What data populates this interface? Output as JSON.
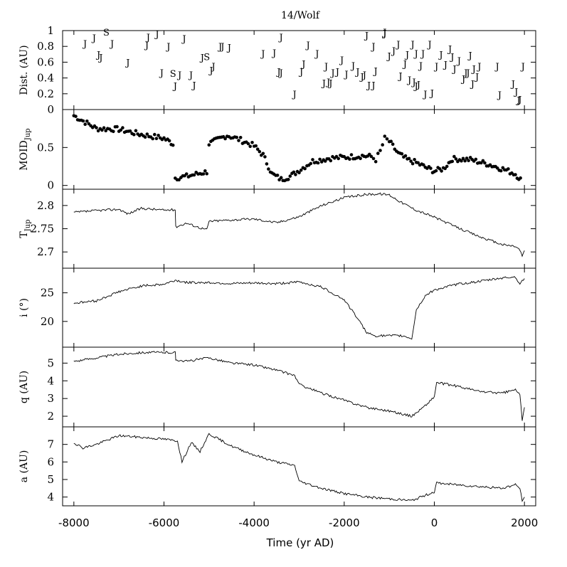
{
  "chart_data": {
    "type": "line",
    "title": "14/Wolf",
    "xlabel": "Time (yr AD)",
    "xlim": [
      -8250,
      2250
    ],
    "xticks": [
      -8000,
      -6000,
      -4000,
      -2000,
      0,
      2000
    ],
    "xtick_labels": [
      "-8000",
      "-6000",
      "-4000",
      "-2000",
      "0",
      "2000"
    ],
    "panels": [
      {
        "name": "dist",
        "ylabel": "Dist. (AU)",
        "kind": "encounters",
        "ylim": [
          0,
          1
        ],
        "yticks": [
          0,
          0.2,
          0.4,
          0.6,
          0.8,
          1
        ],
        "ytick_labels": [
          "0",
          "0.2",
          "0.4",
          "0.6",
          "0.8",
          "1"
        ],
        "encounters": [
          {
            "x": -7750,
            "y": 0.84,
            "body": "J"
          },
          {
            "x": -7550,
            "y": 0.91,
            "body": "J"
          },
          {
            "x": -7280,
            "y": 0.98,
            "body": "S"
          },
          {
            "x": -7450,
            "y": 0.7,
            "body": "J"
          },
          {
            "x": -7400,
            "y": 0.66,
            "body": "J"
          },
          {
            "x": -7150,
            "y": 0.84,
            "body": "J"
          },
          {
            "x": -6800,
            "y": 0.6,
            "body": "J"
          },
          {
            "x": -6350,
            "y": 0.92,
            "body": "J"
          },
          {
            "x": -6380,
            "y": 0.82,
            "body": "J"
          },
          {
            "x": -6150,
            "y": 0.96,
            "body": "J"
          },
          {
            "x": -6050,
            "y": 0.47,
            "body": "J"
          },
          {
            "x": -5900,
            "y": 0.8,
            "body": "J"
          },
          {
            "x": -5800,
            "y": 0.46,
            "body": "S"
          },
          {
            "x": -5650,
            "y": 0.44,
            "body": "J"
          },
          {
            "x": -5750,
            "y": 0.3,
            "body": "J"
          },
          {
            "x": -5550,
            "y": 0.9,
            "body": "J"
          },
          {
            "x": -5400,
            "y": 0.44,
            "body": "J"
          },
          {
            "x": -5330,
            "y": 0.31,
            "body": "J"
          },
          {
            "x": -5150,
            "y": 0.66,
            "body": "J"
          },
          {
            "x": -5050,
            "y": 0.67,
            "body": "S"
          },
          {
            "x": -4950,
            "y": 0.5,
            "body": "J"
          },
          {
            "x": -4900,
            "y": 0.55,
            "body": "J"
          },
          {
            "x": -4750,
            "y": 0.8,
            "body": "J"
          },
          {
            "x": -4700,
            "y": 0.8,
            "body": "J"
          },
          {
            "x": -4550,
            "y": 0.79,
            "body": "J"
          },
          {
            "x": -3800,
            "y": 0.71,
            "body": "J"
          },
          {
            "x": -3550,
            "y": 0.72,
            "body": "J"
          },
          {
            "x": -3450,
            "y": 0.48,
            "body": "J"
          },
          {
            "x": -3400,
            "y": 0.47,
            "body": "J"
          },
          {
            "x": -3400,
            "y": 0.92,
            "body": "J"
          },
          {
            "x": -3100,
            "y": 0.2,
            "body": "J"
          },
          {
            "x": -2950,
            "y": 0.48,
            "body": "J"
          },
          {
            "x": -2900,
            "y": 0.58,
            "body": "J"
          },
          {
            "x": -2800,
            "y": 0.82,
            "body": "J"
          },
          {
            "x": -2600,
            "y": 0.71,
            "body": "J"
          },
          {
            "x": -2450,
            "y": 0.34,
            "body": "J"
          },
          {
            "x": -2350,
            "y": 0.35,
            "body": "J"
          },
          {
            "x": -2400,
            "y": 0.55,
            "body": "J"
          },
          {
            "x": -2300,
            "y": 0.34,
            "body": "J"
          },
          {
            "x": -2250,
            "y": 0.47,
            "body": "J"
          },
          {
            "x": -2150,
            "y": 0.48,
            "body": "J"
          },
          {
            "x": -2050,
            "y": 0.63,
            "body": "J"
          },
          {
            "x": -1950,
            "y": 0.45,
            "body": "J"
          },
          {
            "x": -1800,
            "y": 0.56,
            "body": "J"
          },
          {
            "x": -1700,
            "y": 0.48,
            "body": "J"
          },
          {
            "x": -1600,
            "y": 0.42,
            "body": "J"
          },
          {
            "x": -1550,
            "y": 0.44,
            "body": "J"
          },
          {
            "x": -1500,
            "y": 0.94,
            "body": "J"
          },
          {
            "x": -1450,
            "y": 0.31,
            "body": "J"
          },
          {
            "x": -1350,
            "y": 0.31,
            "body": "J"
          },
          {
            "x": -1300,
            "y": 0.49,
            "body": "J"
          },
          {
            "x": -1350,
            "y": 0.8,
            "body": "J"
          },
          {
            "x": -1100,
            "y": 0.98,
            "body": "J"
          },
          {
            "x": -1100,
            "y": 0.97,
            "body": "J"
          },
          {
            "x": -1000,
            "y": 0.68,
            "body": "J"
          },
          {
            "x": -900,
            "y": 0.75,
            "body": "J"
          },
          {
            "x": -800,
            "y": 0.83,
            "body": "J"
          },
          {
            "x": -750,
            "y": 0.43,
            "body": "J"
          },
          {
            "x": -650,
            "y": 0.58,
            "body": "J"
          },
          {
            "x": -600,
            "y": 0.7,
            "body": "J"
          },
          {
            "x": -550,
            "y": 0.38,
            "body": "J"
          },
          {
            "x": -480,
            "y": 0.83,
            "body": "J"
          },
          {
            "x": -450,
            "y": 0.35,
            "body": "J"
          },
          {
            "x": -400,
            "y": 0.3,
            "body": "J"
          },
          {
            "x": -400,
            "y": 0.71,
            "body": "J"
          },
          {
            "x": -350,
            "y": 0.32,
            "body": "J"
          },
          {
            "x": -300,
            "y": 0.56,
            "body": "J"
          },
          {
            "x": -250,
            "y": 0.71,
            "body": "J"
          },
          {
            "x": -200,
            "y": 0.2,
            "body": "J"
          },
          {
            "x": -100,
            "y": 0.83,
            "body": "J"
          },
          {
            "x": -50,
            "y": 0.21,
            "body": "J"
          },
          {
            "x": 50,
            "y": 0.55,
            "body": "J"
          },
          {
            "x": 150,
            "y": 0.7,
            "body": "J"
          },
          {
            "x": 250,
            "y": 0.57,
            "body": "J"
          },
          {
            "x": 350,
            "y": 0.77,
            "body": "J"
          },
          {
            "x": 400,
            "y": 0.67,
            "body": "J"
          },
          {
            "x": 450,
            "y": 0.52,
            "body": "J"
          },
          {
            "x": 550,
            "y": 0.62,
            "body": "J"
          },
          {
            "x": 650,
            "y": 0.39,
            "body": "J"
          },
          {
            "x": 700,
            "y": 0.47,
            "body": "J"
          },
          {
            "x": 750,
            "y": 0.47,
            "body": "J"
          },
          {
            "x": 800,
            "y": 0.69,
            "body": "J"
          },
          {
            "x": 850,
            "y": 0.33,
            "body": "J"
          },
          {
            "x": 880,
            "y": 0.52,
            "body": "J"
          },
          {
            "x": 950,
            "y": 0.42,
            "body": "J"
          },
          {
            "x": 1000,
            "y": 0.55,
            "body": "J"
          },
          {
            "x": 1450,
            "y": 0.19,
            "body": "J"
          },
          {
            "x": 1400,
            "y": 0.55,
            "body": "J"
          },
          {
            "x": 1750,
            "y": 0.33,
            "body": "J"
          },
          {
            "x": 1820,
            "y": 0.23,
            "body": "J"
          },
          {
            "x": 1870,
            "y": 0.12,
            "body": "J"
          },
          {
            "x": 1900,
            "y": 0.13,
            "body": "J"
          },
          {
            "x": 1970,
            "y": 0.55,
            "body": "J"
          }
        ]
      },
      {
        "name": "moid",
        "ylabel": "MOID_Jup",
        "ylabel_main": "MOID",
        "ylabel_sub": "Jup",
        "kind": "scatter",
        "ylim": [
          -0.05,
          1.0
        ],
        "yticks": [
          0,
          0.5
        ],
        "ytick_labels": [
          "0",
          "0.5"
        ],
        "x": [
          -8000,
          -7500,
          -7000,
          -6500,
          -6000,
          -5800,
          -5750,
          -5500,
          -5200,
          -5050,
          -5000,
          -4600,
          -4300,
          -4000,
          -3800,
          -3600,
          -3400,
          -3200,
          -3000,
          -2700,
          -2300,
          -2000,
          -1600,
          -1400,
          -1300,
          -1200,
          -1100,
          -1000,
          -800,
          -600,
          -400,
          -200,
          0,
          200,
          400,
          800,
          1200,
          1600,
          1800,
          1950
        ],
        "y": [
          0.92,
          0.75,
          0.74,
          0.67,
          0.62,
          0.55,
          0.1,
          0.12,
          0.16,
          0.18,
          0.55,
          0.66,
          0.6,
          0.52,
          0.4,
          0.15,
          0.08,
          0.12,
          0.2,
          0.32,
          0.36,
          0.37,
          0.39,
          0.38,
          0.34,
          0.45,
          0.62,
          0.58,
          0.42,
          0.34,
          0.3,
          0.24,
          0.19,
          0.22,
          0.35,
          0.34,
          0.28,
          0.2,
          0.15,
          0.06
        ]
      },
      {
        "name": "tjup",
        "ylabel": "T_Jup",
        "ylabel_main": "T",
        "ylabel_sub": "Jup",
        "kind": "line",
        "ylim": [
          2.665,
          2.835
        ],
        "yticks": [
          2.7,
          2.75,
          2.8
        ],
        "ytick_labels": [
          "2.7",
          "2.75",
          "2.8"
        ],
        "x": [
          -8000,
          -7500,
          -7000,
          -6800,
          -6500,
          -6000,
          -5750,
          -5740,
          -5500,
          -5200,
          -5050,
          -5000,
          -4500,
          -4000,
          -3500,
          -3000,
          -2500,
          -2000,
          -1500,
          -1200,
          -1000,
          -700,
          -400,
          0,
          500,
          1000,
          1500,
          1800,
          1900,
          1950,
          2000
        ],
        "y": [
          2.785,
          2.789,
          2.792,
          2.782,
          2.794,
          2.79,
          2.791,
          2.754,
          2.762,
          2.752,
          2.748,
          2.766,
          2.769,
          2.771,
          2.763,
          2.776,
          2.8,
          2.817,
          2.824,
          2.825,
          2.823,
          2.805,
          2.79,
          2.775,
          2.753,
          2.733,
          2.716,
          2.712,
          2.704,
          2.691,
          2.703
        ]
      },
      {
        "name": "incl",
        "ylabel": "i (°)",
        "kind": "line",
        "ylim": [
          15.5,
          29.3
        ],
        "yticks": [
          20,
          25
        ],
        "ytick_labels": [
          "20",
          "25"
        ],
        "x": [
          -8000,
          -7500,
          -7000,
          -6500,
          -6000,
          -5750,
          -5500,
          -5000,
          -4500,
          -4000,
          -3500,
          -3000,
          -2500,
          -2000,
          -1700,
          -1500,
          -1300,
          -1000,
          -700,
          -500,
          -400,
          -200,
          0,
          500,
          1000,
          1500,
          1800,
          1900,
          2000
        ],
        "y": [
          23.2,
          23.6,
          25.2,
          26.2,
          26.5,
          27.2,
          26.8,
          26.8,
          26.6,
          26.7,
          26.6,
          26.9,
          26.0,
          23.8,
          20.5,
          18.0,
          17.5,
          17.5,
          17.5,
          17.0,
          22.0,
          24.5,
          25.5,
          26.5,
          27.0,
          27.6,
          27.8,
          26.5,
          27.5
        ]
      },
      {
        "name": "q",
        "ylabel": "q (AU)",
        "kind": "line",
        "ylim": [
          1.4,
          5.9
        ],
        "yticks": [
          2,
          3,
          4,
          5
        ],
        "ytick_labels": [
          "2",
          "3",
          "4",
          "5"
        ],
        "x": [
          -8000,
          -7500,
          -7000,
          -6500,
          -6000,
          -5750,
          -5740,
          -5500,
          -5000,
          -4500,
          -4000,
          -3500,
          -3100,
          -3000,
          -2500,
          -2000,
          -1500,
          -1000,
          -500,
          -200,
          0,
          50,
          500,
          1000,
          1500,
          1800,
          1900,
          1950,
          2000
        ],
        "y": [
          5.1,
          5.3,
          5.5,
          5.6,
          5.6,
          5.6,
          5.2,
          5.1,
          5.3,
          5.0,
          4.9,
          4.6,
          4.3,
          3.8,
          3.3,
          2.9,
          2.5,
          2.3,
          2.0,
          2.6,
          3.1,
          3.9,
          3.7,
          3.4,
          3.3,
          3.5,
          3.2,
          1.8,
          2.5
        ]
      },
      {
        "name": "a",
        "ylabel": "a (AU)",
        "kind": "line",
        "ylim": [
          3.5,
          8.0
        ],
        "yticks": [
          4,
          5,
          6,
          7
        ],
        "ytick_labels": [
          "4",
          "5",
          "6",
          "7"
        ],
        "x": [
          -8000,
          -7800,
          -7500,
          -7000,
          -6500,
          -6000,
          -5700,
          -5600,
          -5400,
          -5200,
          -5000,
          -4500,
          -4000,
          -3500,
          -3100,
          -3000,
          -2500,
          -2000,
          -1500,
          -1000,
          -500,
          -200,
          0,
          50,
          500,
          1000,
          1500,
          1800,
          1900,
          1950,
          2000
        ],
        "y": [
          7.1,
          6.8,
          7.0,
          7.5,
          7.4,
          7.3,
          7.2,
          6.0,
          7.1,
          6.6,
          7.6,
          6.9,
          6.4,
          6.0,
          5.8,
          4.9,
          4.5,
          4.2,
          4.0,
          3.9,
          3.8,
          4.1,
          4.3,
          4.8,
          4.7,
          4.6,
          4.5,
          4.7,
          4.5,
          3.8,
          4.0
        ]
      }
    ]
  }
}
